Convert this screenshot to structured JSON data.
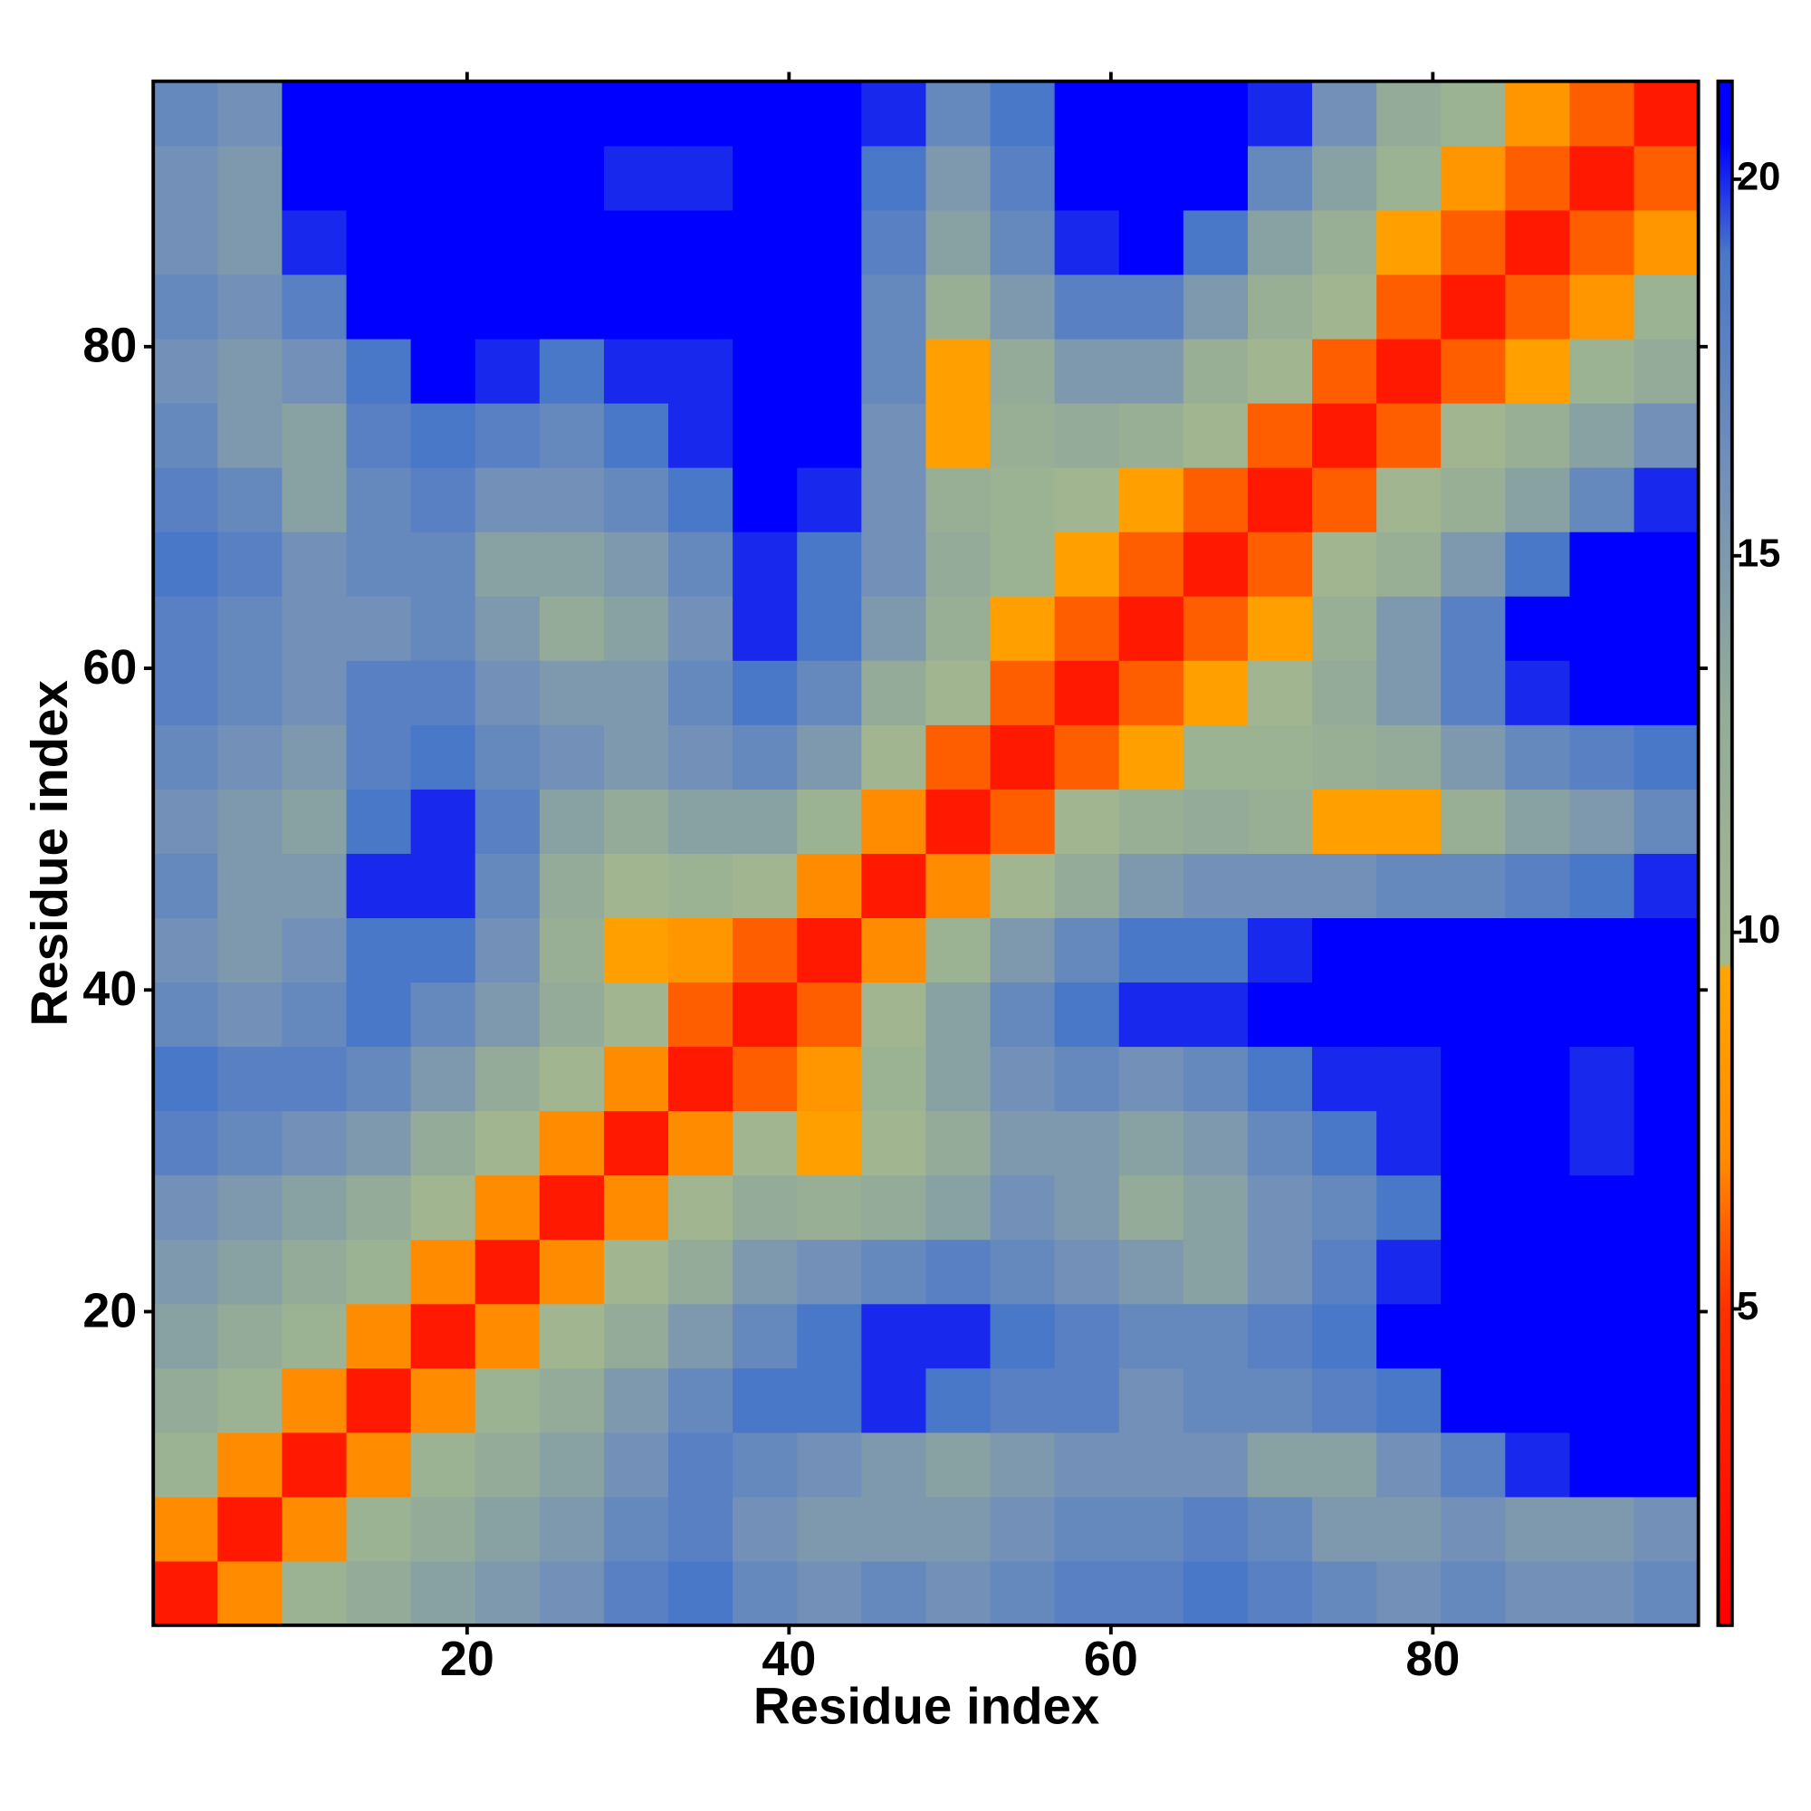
{
  "chart_data": {
    "type": "heatmap",
    "xlabel": "Residue index",
    "ylabel": "Residue index",
    "x": [
      2.5,
      6.5,
      10.5,
      14.5,
      18.5,
      22.5,
      26.5,
      30.5,
      34.5,
      38.5,
      42.5,
      46.5,
      50.5,
      54.5,
      58.5,
      62.5,
      66.5,
      70.5,
      74.5,
      78.5,
      82.5,
      86.5,
      90.5,
      94.5
    ],
    "y": [
      2.5,
      6.5,
      10.5,
      14.5,
      18.5,
      22.5,
      26.5,
      30.5,
      34.5,
      38.5,
      42.5,
      46.5,
      50.5,
      54.5,
      58.5,
      62.5,
      66.5,
      70.5,
      74.5,
      78.5,
      82.5,
      86.5,
      90.5,
      94.5
    ],
    "z": [
      [
        3,
        7,
        11,
        13,
        14,
        15,
        16,
        18,
        19,
        17,
        16,
        17,
        16,
        17,
        18,
        18,
        19,
        18,
        17,
        16,
        17,
        16,
        16,
        17
      ],
      [
        7,
        3,
        7,
        11,
        13,
        14,
        15,
        17,
        18,
        16,
        15,
        15,
        15,
        16,
        17,
        17,
        18,
        17,
        15,
        15,
        16,
        15,
        15,
        16
      ],
      [
        11,
        7,
        3,
        7,
        11,
        13,
        14,
        16,
        18,
        17,
        16,
        15,
        14,
        15,
        16,
        16,
        16,
        14,
        14,
        16,
        18,
        20,
        21,
        21
      ],
      [
        13,
        11,
        7,
        3,
        7,
        11,
        13,
        15,
        17,
        19,
        19,
        20,
        19,
        18,
        18,
        16,
        17,
        17,
        18,
        19,
        21,
        21,
        21,
        21
      ],
      [
        14,
        13,
        11,
        7,
        3,
        7,
        10,
        13,
        15,
        17,
        19,
        20,
        20,
        19,
        18,
        17,
        17,
        18,
        19,
        21,
        21,
        21,
        21,
        21
      ],
      [
        15,
        14,
        13,
        11,
        7,
        3,
        7,
        10,
        13,
        15,
        16,
        17,
        18,
        17,
        16,
        15,
        14,
        16,
        18,
        20,
        21,
        21,
        21,
        21
      ],
      [
        16,
        15,
        14,
        13,
        10,
        7,
        3,
        7,
        10,
        13,
        12,
        13,
        14,
        16,
        15,
        13,
        14,
        16,
        17,
        19,
        21,
        21,
        21,
        21
      ],
      [
        18,
        17,
        16,
        15,
        13,
        10,
        7,
        3,
        7,
        10,
        9,
        10,
        13,
        15,
        15,
        14,
        15,
        17,
        19,
        20,
        21,
        21,
        20,
        21
      ],
      [
        19,
        18,
        18,
        17,
        15,
        13,
        10,
        7,
        3,
        6,
        8,
        11,
        14,
        16,
        17,
        16,
        17,
        19,
        20,
        20,
        21,
        21,
        20,
        21
      ],
      [
        17,
        16,
        17,
        19,
        17,
        15,
        13,
        10,
        6,
        3,
        6,
        10,
        14,
        17,
        19,
        20,
        20,
        21,
        21,
        21,
        21,
        21,
        21,
        21
      ],
      [
        16,
        15,
        16,
        19,
        19,
        16,
        12,
        9,
        8,
        6,
        3,
        7,
        11,
        15,
        17,
        19,
        19,
        20,
        21,
        21,
        21,
        21,
        21,
        21
      ],
      [
        17,
        15,
        15,
        20,
        20,
        17,
        13,
        10,
        11,
        10,
        7,
        3,
        7,
        10,
        13,
        15,
        16,
        16,
        16,
        17,
        17,
        18,
        19,
        20
      ],
      [
        16,
        15,
        14,
        19,
        20,
        18,
        14,
        13,
        14,
        14,
        11,
        7,
        3,
        6,
        10,
        12,
        13,
        12,
        9,
        9,
        12,
        14,
        15,
        17
      ],
      [
        17,
        16,
        15,
        18,
        19,
        17,
        16,
        15,
        16,
        17,
        15,
        10,
        6,
        3,
        6,
        9,
        11,
        11,
        12,
        13,
        15,
        17,
        18,
        19
      ],
      [
        18,
        17,
        16,
        18,
        18,
        16,
        15,
        15,
        17,
        19,
        17,
        13,
        10,
        6,
        3,
        6,
        9,
        10,
        13,
        15,
        18,
        20,
        21,
        21
      ],
      [
        18,
        17,
        16,
        16,
        17,
        15,
        13,
        14,
        16,
        20,
        19,
        15,
        12,
        9,
        6,
        3,
        6,
        9,
        12,
        15,
        18,
        21,
        21,
        21
      ],
      [
        19,
        18,
        16,
        17,
        17,
        14,
        14,
        15,
        17,
        20,
        19,
        16,
        13,
        11,
        9,
        6,
        3,
        6,
        10,
        12,
        15,
        19,
        21,
        21
      ],
      [
        18,
        17,
        14,
        17,
        18,
        16,
        16,
        17,
        19,
        21,
        20,
        16,
        12,
        11,
        10,
        9,
        6,
        3,
        6,
        10,
        12,
        14,
        17,
        20
      ],
      [
        17,
        15,
        14,
        18,
        19,
        18,
        17,
        19,
        20,
        21,
        21,
        16,
        9,
        12,
        13,
        12,
        10,
        6,
        3,
        6,
        10,
        12,
        14,
        16
      ],
      [
        16,
        15,
        16,
        19,
        21,
        20,
        19,
        20,
        20,
        21,
        21,
        17,
        9,
        13,
        15,
        15,
        12,
        10,
        6,
        3,
        6,
        9,
        11,
        13
      ],
      [
        17,
        16,
        18,
        21,
        21,
        21,
        21,
        21,
        21,
        21,
        21,
        17,
        12,
        15,
        18,
        18,
        15,
        12,
        10,
        6,
        3,
        6,
        8,
        11
      ],
      [
        16,
        15,
        20,
        21,
        21,
        21,
        21,
        21,
        21,
        21,
        21,
        18,
        14,
        17,
        20,
        21,
        19,
        14,
        12,
        9,
        6,
        3,
        6,
        8
      ],
      [
        16,
        15,
        21,
        21,
        21,
        21,
        21,
        20,
        20,
        21,
        21,
        19,
        15,
        18,
        21,
        21,
        21,
        17,
        14,
        11,
        8,
        6,
        3,
        6
      ],
      [
        17,
        16,
        21,
        21,
        21,
        21,
        21,
        21,
        21,
        21,
        21,
        20,
        17,
        19,
        21,
        21,
        21,
        20,
        16,
        13,
        11,
        8,
        6,
        3
      ]
    ],
    "xlim": [
      0.5,
      96.5
    ],
    "ylim": [
      0.5,
      96.5
    ],
    "xticks": [
      20,
      40,
      60,
      80
    ],
    "yticks": [
      20,
      40,
      60,
      80
    ],
    "zlim": [
      0.8,
      21.3
    ],
    "zticks": [
      5,
      10,
      15,
      20
    ],
    "colorscale": [
      [
        0.8,
        "#ff0000"
      ],
      [
        5,
        "#ff3000"
      ],
      [
        7,
        "#ff8c00"
      ],
      [
        9.5,
        "#ffa500"
      ],
      [
        9.6,
        "#a3b88f"
      ],
      [
        13,
        "#93ab98"
      ],
      [
        16,
        "#7390b8"
      ],
      [
        19,
        "#4a78c8"
      ],
      [
        20.5,
        "#0000ff"
      ],
      [
        21.3,
        "#0000ff"
      ]
    ]
  }
}
